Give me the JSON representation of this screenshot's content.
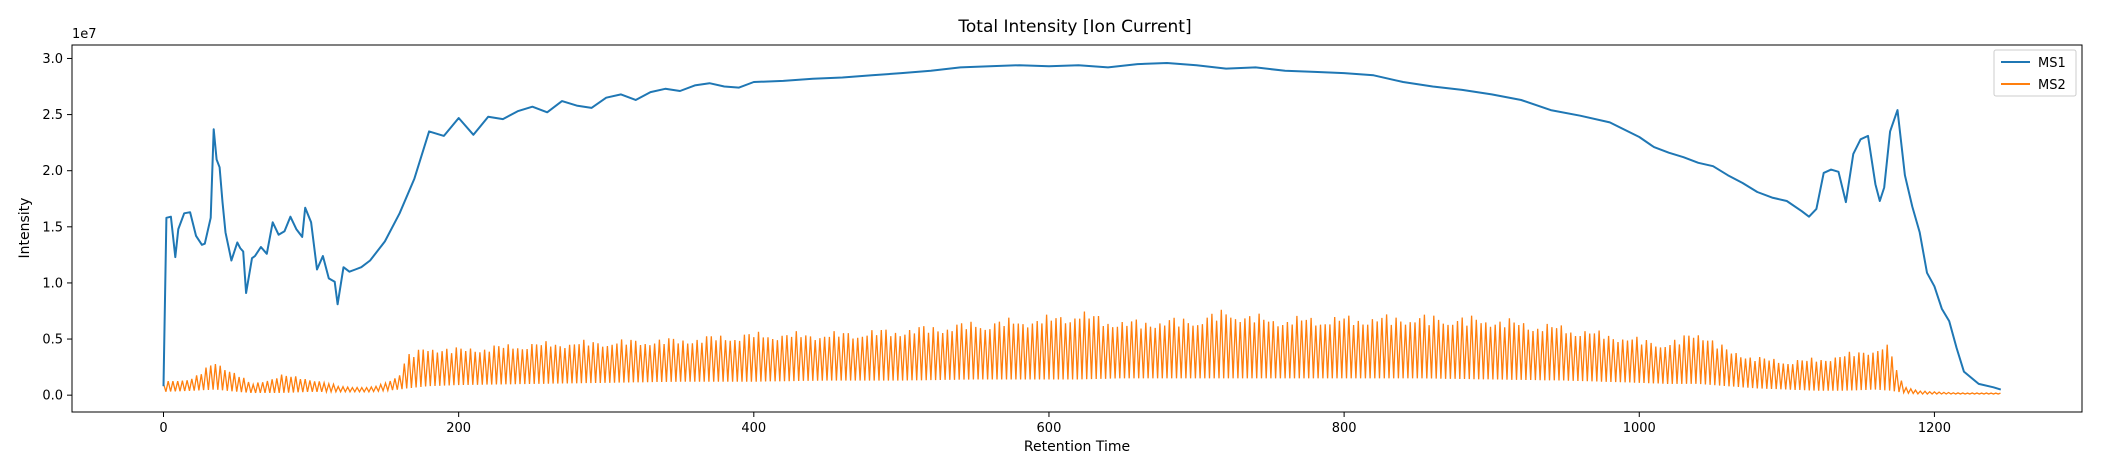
{
  "chart_data": {
    "type": "line",
    "title": "Total Intensity [Ion Current]",
    "xlabel": "Retention Time",
    "ylabel": "Intensity",
    "y_multiplier_label": "1e7",
    "xlim": [
      -62,
      1300
    ],
    "ylim": [
      -1.5,
      31.2
    ],
    "xticks": [
      0,
      200,
      400,
      600,
      800,
      1000,
      1200
    ],
    "xtick_labels": [
      "0",
      "200",
      "400",
      "600",
      "800",
      "1000",
      "1200"
    ],
    "yticks": [
      0,
      5,
      10,
      15,
      20,
      25,
      30
    ],
    "ytick_labels": [
      "0.0",
      "0.5",
      "1.0",
      "1.5",
      "2.0",
      "2.5",
      "3.0"
    ],
    "grid": false,
    "legend_position": "top-right",
    "series": [
      {
        "name": "MS1",
        "color": "#1f77b4",
        "x": [
          0,
          2,
          5,
          8,
          10,
          14,
          18,
          22,
          26,
          28,
          32,
          34,
          36,
          38,
          40,
          42,
          46,
          50,
          52,
          54,
          56,
          60,
          62,
          66,
          70,
          74,
          78,
          82,
          86,
          90,
          94,
          96,
          100,
          104,
          108,
          112,
          116,
          118,
          122,
          126,
          130,
          134,
          140,
          150,
          160,
          170,
          180,
          190,
          200,
          210,
          220,
          230,
          240,
          250,
          260,
          270,
          280,
          290,
          300,
          310,
          320,
          330,
          340,
          350,
          360,
          370,
          380,
          390,
          400,
          420,
          440,
          460,
          480,
          500,
          520,
          540,
          560,
          580,
          600,
          620,
          640,
          660,
          680,
          700,
          720,
          740,
          760,
          780,
          800,
          820,
          840,
          860,
          880,
          900,
          920,
          940,
          960,
          980,
          1000,
          1010,
          1020,
          1030,
          1040,
          1050,
          1060,
          1070,
          1080,
          1090,
          1100,
          1110,
          1115,
          1120,
          1125,
          1130,
          1135,
          1140,
          1145,
          1150,
          1155,
          1160,
          1163,
          1166,
          1170,
          1175,
          1180,
          1185,
          1190,
          1195,
          1200,
          1205,
          1210,
          1215,
          1220,
          1230,
          1240,
          1245
        ],
        "values": [
          0.8,
          15.8,
          15.9,
          12.3,
          14.8,
          16.2,
          16.3,
          14.2,
          13.4,
          13.5,
          15.8,
          23.7,
          21,
          20.3,
          17.2,
          14.5,
          12,
          13.6,
          13.1,
          12.8,
          9.1,
          12.2,
          12.4,
          13.2,
          12.6,
          15.4,
          14.3,
          14.6,
          15.9,
          14.8,
          14.1,
          16.7,
          15.4,
          11.2,
          12.4,
          10.4,
          10.1,
          8.1,
          11.4,
          11,
          11.2,
          11.4,
          12,
          13.7,
          16.2,
          19.3,
          23.5,
          23.1,
          24.7,
          23.2,
          24.8,
          24.6,
          25.3,
          25.7,
          25.2,
          26.2,
          25.8,
          25.6,
          26.5,
          26.8,
          26.3,
          27,
          27.3,
          27.1,
          27.6,
          27.8,
          27.5,
          27.4,
          27.9,
          28,
          28.2,
          28.3,
          28.5,
          28.7,
          28.9,
          29.2,
          29.3,
          29.4,
          29.3,
          29.4,
          29.2,
          29.5,
          29.6,
          29.4,
          29.1,
          29.2,
          28.9,
          28.8,
          28.7,
          28.5,
          27.9,
          27.5,
          27.2,
          26.8,
          26.3,
          25.4,
          24.9,
          24.3,
          23,
          22.1,
          21.6,
          21.2,
          20.7,
          20.4,
          19.6,
          18.9,
          18.1,
          17.6,
          17.3,
          16.4,
          15.9,
          16.6,
          19.8,
          20.1,
          19.9,
          17.2,
          21.5,
          22.8,
          23.1,
          18.8,
          17.3,
          18.5,
          23.5,
          25.4,
          19.6,
          16.8,
          14.5,
          10.9,
          9.7,
          7.7,
          6.6,
          4.2,
          2.1,
          1,
          0.7,
          0.5
        ]
      },
      {
        "name": "MS2",
        "color": "#ff7f0e",
        "x": [
          0,
          20,
          35,
          50,
          60,
          80,
          100,
          120,
          140,
          150,
          160,
          165,
          180,
          200,
          250,
          300,
          350,
          400,
          450,
          500,
          550,
          600,
          620,
          650,
          700,
          720,
          750,
          800,
          850,
          900,
          950,
          1000,
          1020,
          1040,
          1060,
          1080,
          1100,
          1120,
          1140,
          1160,
          1170,
          1175,
          1180,
          1190,
          1200,
          1220,
          1245
        ],
        "peak_values": [
          1.2,
          1.6,
          3.1,
          2,
          1,
          1.9,
          1.5,
          0.8,
          0.7,
          1.1,
          2,
          3.7,
          4.5,
          4.3,
          4.8,
          5,
          5.2,
          5.7,
          5.7,
          6.1,
          6.7,
          7.2,
          7.7,
          6.8,
          7.1,
          7.8,
          7.1,
          7.2,
          7.3,
          7.1,
          6.3,
          5.2,
          4.8,
          6,
          4.2,
          3.5,
          3.2,
          3.4,
          3.8,
          4.4,
          4.6,
          2,
          0.8,
          0.4,
          0.3,
          0.2,
          0.2
        ],
        "base_values": [
          0.3,
          0.4,
          0.5,
          0.3,
          0.2,
          0.2,
          0.3,
          0.3,
          0.3,
          0.4,
          0.5,
          0.6,
          0.8,
          0.9,
          1,
          1.1,
          1.2,
          1.2,
          1.3,
          1.3,
          1.4,
          1.4,
          1.4,
          1.5,
          1.5,
          1.5,
          1.5,
          1.5,
          1.5,
          1.4,
          1.3,
          1.1,
          1,
          1,
          0.8,
          0.6,
          0.5,
          0.4,
          0.4,
          0.5,
          0.4,
          0.3,
          0.2,
          0.1,
          0.1,
          0.1,
          0.1
        ]
      }
    ]
  }
}
